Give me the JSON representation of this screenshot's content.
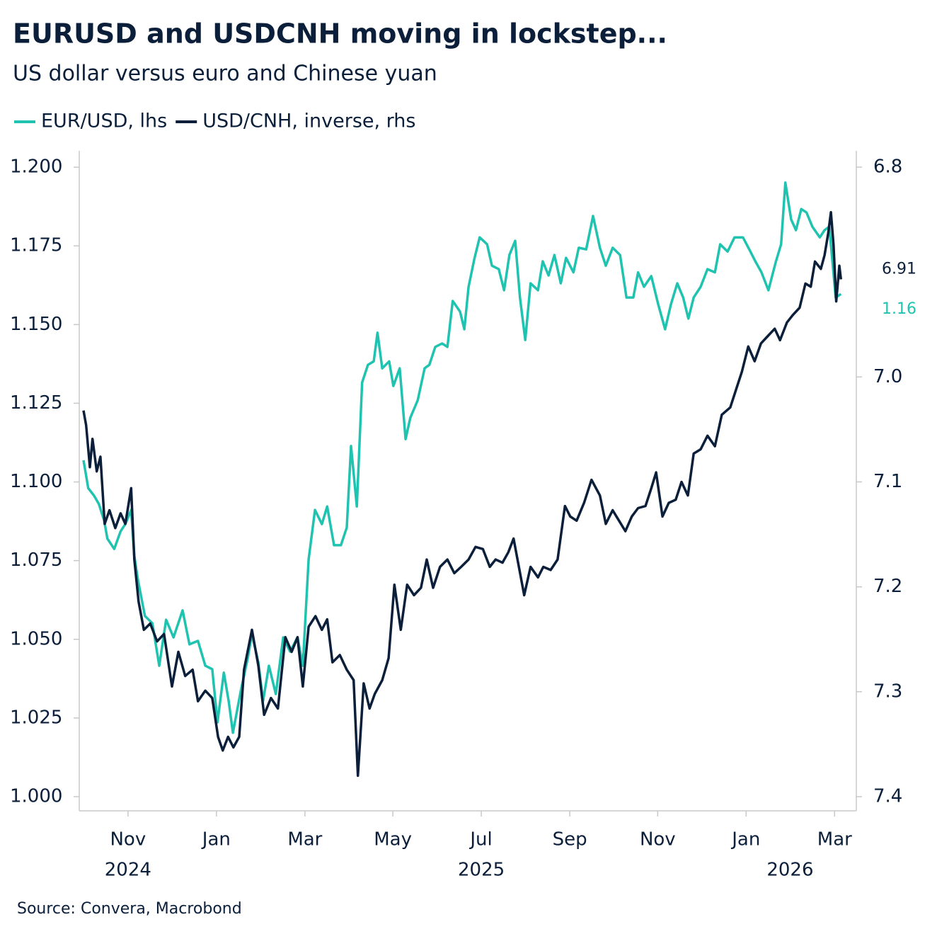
{
  "chart_data": {
    "type": "line",
    "title": "EURUSD and USDCNH moving in lockstep...",
    "subtitle": "US dollar versus euro and Chinese yuan",
    "source": "Source: Convera, Macrobond",
    "xlim": [
      2024.741,
      2026.208
    ],
    "xticks": [
      {
        "value": 2024.833,
        "label": "Nov"
      },
      {
        "value": 2025.0,
        "label": "Jan"
      },
      {
        "value": 2025.167,
        "label": "Mar"
      },
      {
        "value": 2025.333,
        "label": "May"
      },
      {
        "value": 2025.5,
        "label": "Jul"
      },
      {
        "value": 2025.667,
        "label": "Sep"
      },
      {
        "value": 2025.833,
        "label": "Nov"
      },
      {
        "value": 2026.0,
        "label": "Jan"
      },
      {
        "value": 2026.167,
        "label": "Mar"
      }
    ],
    "xyears": [
      {
        "value": 2024.833,
        "label": "2024"
      },
      {
        "value": 2025.5,
        "label": "2025"
      },
      {
        "value": 2026.083,
        "label": "2026"
      }
    ],
    "ylim": [
      0.9955,
      1.2052
    ],
    "yticks": [
      {
        "value": 1.0,
        "label": "1.000"
      },
      1.025,
      {
        "value": 1.05,
        "label": "1.050"
      },
      1.075,
      {
        "value": 1.1,
        "label": "1.100"
      },
      1.125,
      {
        "value": 1.15,
        "label": "1.150"
      },
      1.175,
      {
        "value": 1.2,
        "label": "1.200"
      }
    ],
    "y2lim": [
      7.4135,
      6.7845
    ],
    "y2ticks": [
      {
        "value": 7.4,
        "label": "7.4"
      },
      {
        "value": 7.3,
        "label": "7.3"
      },
      {
        "value": 7.2,
        "label": "7.2"
      },
      {
        "value": 7.1,
        "label": "7.1"
      },
      {
        "value": 7.0,
        "label": "7.0"
      },
      {
        "value": 6.8,
        "label": "6.8"
      }
    ],
    "grid": false,
    "series": [
      {
        "name": "EUR/USD, lhs",
        "color": "#1fc3b0",
        "axis": "y",
        "last_label": "1.16",
        "x": [
          2024.749,
          2024.758,
          2024.769,
          2024.778,
          2024.788,
          2024.794,
          2024.807,
          2024.819,
          2024.828,
          2024.839,
          2024.845,
          2024.852,
          2024.865,
          2024.879,
          2024.892,
          2024.905,
          2024.919,
          2024.936,
          2024.949,
          2024.965,
          2024.979,
          2024.992,
          2025.002,
          2025.014,
          2025.023,
          2025.031,
          2025.046,
          2025.059,
          2025.067,
          2025.079,
          2025.088,
          2025.099,
          2025.112,
          2025.126,
          2025.139,
          2025.153,
          2025.163,
          2025.174,
          2025.186,
          2025.199,
          2025.209,
          2025.222,
          2025.235,
          2025.246,
          2025.254,
          2025.265,
          2025.275,
          2025.286,
          2025.297,
          2025.304,
          2025.313,
          2025.326,
          2025.334,
          2025.346,
          2025.357,
          2025.366,
          2025.38,
          2025.393,
          2025.402,
          2025.413,
          2025.426,
          2025.436,
          2025.446,
          2025.46,
          2025.468,
          2025.476,
          2025.487,
          2025.497,
          2025.511,
          2025.52,
          2025.533,
          2025.543,
          2025.553,
          2025.564,
          2025.573,
          2025.583,
          2025.593,
          2025.607,
          2025.616,
          2025.627,
          2025.638,
          2025.65,
          2025.66,
          2025.674,
          2025.684,
          2025.698,
          2025.711,
          2025.724,
          2025.735,
          2025.748,
          2025.762,
          2025.774,
          2025.787,
          2025.796,
          2025.807,
          2025.821,
          2025.834,
          2025.847,
          2025.858,
          2025.87,
          2025.881,
          2025.891,
          2025.901,
          2025.914,
          2025.927,
          2025.941,
          2025.951,
          2025.965,
          2025.978,
          2025.994,
          2026.008,
          2026.018,
          2026.029,
          2026.042,
          2026.056,
          2026.066,
          2026.074,
          2026.085,
          2026.094,
          2026.104,
          2026.114,
          2026.125,
          2026.139,
          2026.148,
          2026.157,
          2026.163,
          2026.169,
          2026.179
        ],
        "values": [
          1.1069,
          1.098,
          1.0956,
          1.093,
          1.0877,
          1.082,
          1.0787,
          1.0843,
          1.0866,
          1.0911,
          1.0765,
          1.0686,
          1.0574,
          1.0551,
          1.0416,
          1.0562,
          1.0506,
          1.0592,
          1.0484,
          1.0495,
          1.0416,
          1.0405,
          1.0236,
          1.0394,
          1.0304,
          1.0203,
          1.0337,
          1.0439,
          1.0517,
          1.0427,
          1.0304,
          1.0416,
          1.0326,
          1.0506,
          1.0461,
          1.0506,
          1.0416,
          1.0754,
          1.0911,
          1.0866,
          1.0922,
          1.0799,
          1.0799,
          1.0855,
          1.1114,
          1.0922,
          1.1316,
          1.1372,
          1.1383,
          1.1474,
          1.1361,
          1.1383,
          1.1305,
          1.1361,
          1.1136,
          1.1204,
          1.126,
          1.1361,
          1.1372,
          1.1429,
          1.144,
          1.1429,
          1.1575,
          1.1541,
          1.1485,
          1.162,
          1.171,
          1.1777,
          1.1755,
          1.1687,
          1.1676,
          1.1609,
          1.1721,
          1.1766,
          1.1586,
          1.1451,
          1.1631,
          1.1609,
          1.1701,
          1.1656,
          1.1721,
          1.1631,
          1.1712,
          1.1666,
          1.1744,
          1.1739,
          1.1845,
          1.1744,
          1.1687,
          1.1744,
          1.1721,
          1.1586,
          1.1586,
          1.1666,
          1.162,
          1.1654,
          1.1564,
          1.1485,
          1.1564,
          1.1631,
          1.1586,
          1.1519,
          1.1586,
          1.162,
          1.1676,
          1.1666,
          1.1755,
          1.1732,
          1.1777,
          1.1777,
          1.1732,
          1.1699,
          1.1666,
          1.1609,
          1.1699,
          1.1755,
          1.1951,
          1.1834,
          1.18,
          1.1867,
          1.1856,
          1.1811,
          1.1777,
          1.18,
          1.1811,
          1.1699,
          1.1586,
          1.1597
        ]
      },
      {
        "name": "USD/CNH, inverse, rhs",
        "color": "#0b1f3a",
        "axis": "y2",
        "last_label": "6.91",
        "x": [
          2024.749,
          2024.754,
          2024.761,
          2024.766,
          2024.774,
          2024.781,
          2024.789,
          2024.798,
          2024.809,
          2024.819,
          2024.828,
          2024.839,
          2024.845,
          2024.853,
          2024.863,
          2024.875,
          2024.888,
          2024.901,
          2024.916,
          2024.928,
          2024.941,
          2024.955,
          2024.965,
          2024.979,
          2024.992,
          2025.003,
          2025.012,
          2025.022,
          2025.032,
          2025.043,
          2025.052,
          2025.067,
          2025.079,
          2025.09,
          2025.103,
          2025.116,
          2025.13,
          2025.142,
          2025.153,
          2025.163,
          2025.174,
          2025.187,
          2025.199,
          2025.209,
          2025.219,
          2025.233,
          2025.246,
          2025.259,
          2025.267,
          2025.278,
          2025.289,
          2025.299,
          2025.313,
          2025.325,
          2025.336,
          2025.348,
          2025.36,
          2025.373,
          2025.386,
          2025.397,
          2025.409,
          2025.422,
          2025.436,
          2025.449,
          2025.462,
          2025.476,
          2025.489,
          2025.503,
          2025.516,
          2025.527,
          2025.54,
          2025.551,
          2025.561,
          2025.571,
          2025.581,
          2025.593,
          2025.607,
          2025.617,
          2025.631,
          2025.644,
          2025.658,
          2025.668,
          2025.68,
          2025.694,
          2025.708,
          2025.724,
          2025.735,
          2025.748,
          2025.76,
          2025.772,
          2025.784,
          2025.796,
          2025.81,
          2025.821,
          2025.83,
          2025.842,
          2025.854,
          2025.867,
          2025.878,
          2025.89,
          2025.901,
          2025.914,
          2025.927,
          2025.941,
          2025.954,
          2025.97,
          2025.981,
          2025.992,
          2026.004,
          2026.016,
          2026.028,
          2026.041,
          2026.054,
          2026.064,
          2026.077,
          2026.088,
          2026.101,
          2026.112,
          2026.122,
          2026.13,
          2026.141,
          2026.148,
          2026.155,
          2026.16,
          2026.165,
          2026.17,
          2026.176,
          2026.179
        ],
        "values": [
          7.032,
          7.046,
          7.086,
          7.059,
          7.09,
          7.076,
          7.14,
          7.127,
          7.144,
          7.13,
          7.14,
          7.106,
          7.174,
          7.214,
          7.241,
          7.235,
          7.252,
          7.245,
          7.295,
          7.262,
          7.285,
          7.279,
          7.309,
          7.299,
          7.306,
          7.343,
          7.356,
          7.343,
          7.353,
          7.343,
          7.279,
          7.241,
          7.275,
          7.322,
          7.306,
          7.316,
          7.248,
          7.262,
          7.248,
          7.295,
          7.238,
          7.228,
          7.241,
          7.231,
          7.272,
          7.265,
          7.279,
          7.289,
          7.38,
          7.292,
          7.316,
          7.302,
          7.289,
          7.268,
          7.198,
          7.241,
          7.198,
          7.208,
          7.201,
          7.174,
          7.201,
          7.181,
          7.174,
          7.187,
          7.181,
          7.174,
          7.162,
          7.164,
          7.181,
          7.174,
          7.177,
          7.167,
          7.154,
          7.181,
          7.208,
          7.181,
          7.191,
          7.181,
          7.184,
          7.174,
          7.123,
          7.133,
          7.137,
          7.12,
          7.098,
          7.113,
          7.14,
          7.127,
          7.137,
          7.147,
          7.133,
          7.125,
          7.123,
          7.106,
          7.091,
          7.133,
          7.12,
          7.117,
          7.1,
          7.113,
          7.073,
          7.069,
          7.056,
          7.066,
          7.036,
          7.029,
          7.012,
          6.995,
          6.971,
          6.985,
          6.968,
          6.961,
          6.954,
          6.965,
          6.948,
          6.941,
          6.934,
          6.911,
          6.914,
          6.89,
          6.897,
          6.884,
          6.863,
          6.843,
          6.874,
          6.928,
          6.894,
          6.907
        ]
      }
    ]
  }
}
